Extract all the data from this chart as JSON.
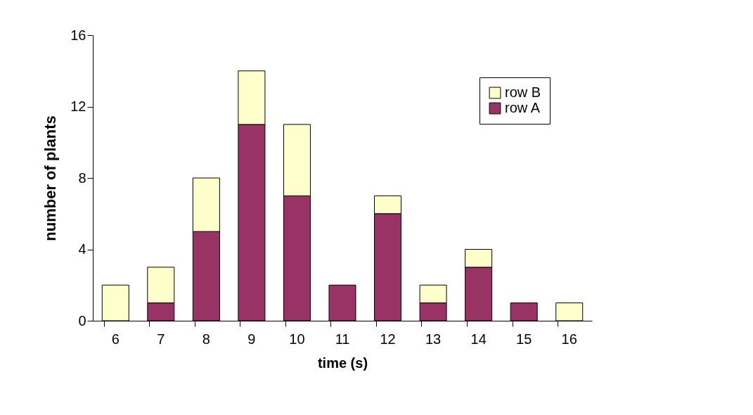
{
  "chart_data": {
    "type": "bar",
    "xlabel": "time (s)",
    "ylabel": "number of plants",
    "categories": [
      "6",
      "7",
      "8",
      "9",
      "10",
      "11",
      "12",
      "13",
      "14",
      "15",
      "16"
    ],
    "series": [
      {
        "name": "row A",
        "color": "#993366",
        "values": [
          0,
          1,
          5,
          11,
          7,
          2,
          6,
          1,
          3,
          1,
          0
        ]
      },
      {
        "name": "row B",
        "color": "#ffffcc",
        "values": [
          2,
          2,
          3,
          3,
          4,
          0,
          1,
          1,
          1,
          0,
          1
        ]
      }
    ],
    "stacked": true,
    "ylim": [
      0,
      16
    ],
    "yticks": [
      0,
      4,
      8,
      12,
      16
    ],
    "grid": false,
    "legend": "top right"
  }
}
